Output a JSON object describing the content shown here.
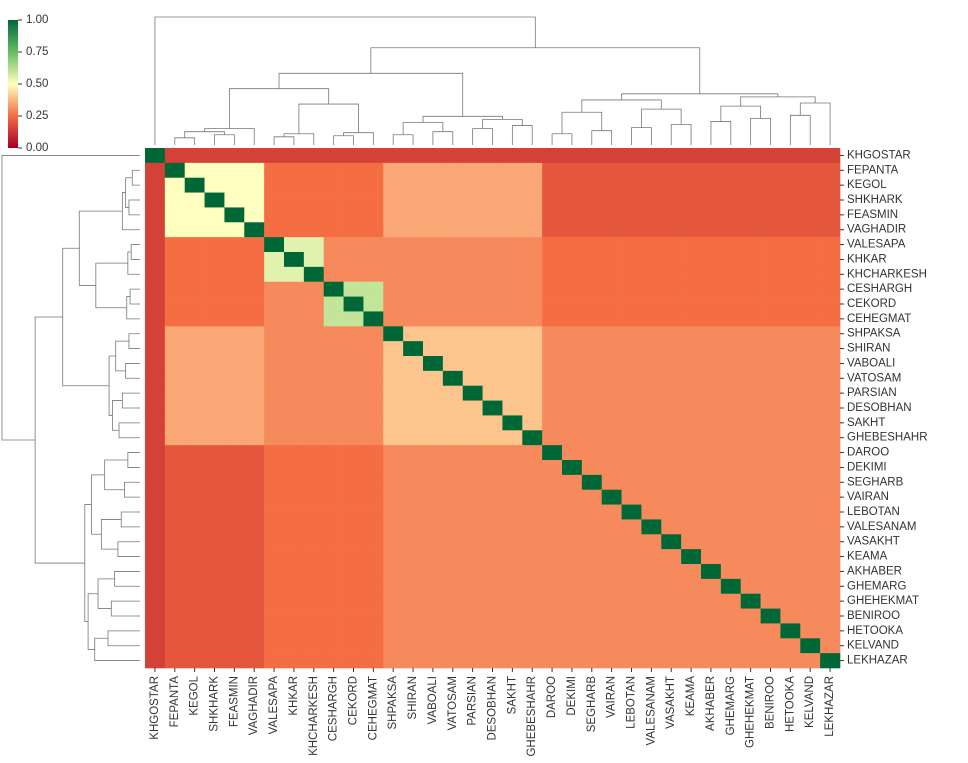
{
  "chart_data": {
    "type": "heatmap",
    "categories": [
      "KHGOSTAR",
      "FEPANTA",
      "KEGOL",
      "SHKHARK",
      "FEASMIN",
      "VAGHADIR",
      "VALESAPA",
      "KHKAR",
      "KHCHARKESH",
      "CESHARGH",
      "CEKORD",
      "CEHEGMAT",
      "SHPAKSA",
      "SHIRAN",
      "VABOALI",
      "VATOSAM",
      "PARSIAN",
      "DESOBHAN",
      "SAKHT",
      "GHEBESHAHR",
      "DAROO",
      "DEKIMI",
      "SEGHARB",
      "VAIRAN",
      "LEBOTAN",
      "VALESANAM",
      "VASAKHT",
      "KEAMA",
      "AKHABER",
      "GHEMARG",
      "GHEHEKMAT",
      "BENIROO",
      "HETOOKA",
      "KELVAND",
      "LEKHAZAR"
    ],
    "values": [
      [
        1,
        0.15,
        0.15,
        0.15,
        0.15,
        0.15,
        0.15,
        0.15,
        0.15,
        0.15,
        0.15,
        0.15,
        0.15,
        0.15,
        0.15,
        0.15,
        0.15,
        0.15,
        0.15,
        0.15,
        0.15,
        0.15,
        0.15,
        0.15,
        0.15,
        0.15,
        0.15,
        0.15,
        0.15,
        0.15,
        0.15,
        0.15,
        0.15,
        0.15,
        0.15
      ],
      [
        0.15,
        1,
        0.5,
        0.5,
        0.5,
        0.5,
        0.25,
        0.25,
        0.25,
        0.25,
        0.25,
        0.25,
        0.35,
        0.35,
        0.35,
        0.35,
        0.35,
        0.35,
        0.35,
        0.35,
        0.2,
        0.2,
        0.2,
        0.2,
        0.2,
        0.2,
        0.2,
        0.2,
        0.2,
        0.2,
        0.2,
        0.2,
        0.2,
        0.2,
        0.2
      ],
      [
        0.15,
        0.5,
        1,
        0.5,
        0.5,
        0.5,
        0.25,
        0.25,
        0.25,
        0.25,
        0.25,
        0.25,
        0.35,
        0.35,
        0.35,
        0.35,
        0.35,
        0.35,
        0.35,
        0.35,
        0.2,
        0.2,
        0.2,
        0.2,
        0.2,
        0.2,
        0.2,
        0.2,
        0.2,
        0.2,
        0.2,
        0.2,
        0.2,
        0.2,
        0.2
      ],
      [
        0.15,
        0.5,
        0.5,
        1,
        0.5,
        0.5,
        0.25,
        0.25,
        0.25,
        0.25,
        0.25,
        0.25,
        0.35,
        0.35,
        0.35,
        0.35,
        0.35,
        0.35,
        0.35,
        0.35,
        0.2,
        0.2,
        0.2,
        0.2,
        0.2,
        0.2,
        0.2,
        0.2,
        0.2,
        0.2,
        0.2,
        0.2,
        0.2,
        0.2,
        0.2
      ],
      [
        0.15,
        0.5,
        0.5,
        0.5,
        1,
        0.5,
        0.25,
        0.25,
        0.25,
        0.25,
        0.25,
        0.25,
        0.35,
        0.35,
        0.35,
        0.35,
        0.35,
        0.35,
        0.35,
        0.35,
        0.2,
        0.2,
        0.2,
        0.2,
        0.2,
        0.2,
        0.2,
        0.2,
        0.2,
        0.2,
        0.2,
        0.2,
        0.2,
        0.2,
        0.2
      ],
      [
        0.15,
        0.5,
        0.5,
        0.5,
        0.5,
        1,
        0.25,
        0.25,
        0.25,
        0.25,
        0.25,
        0.25,
        0.35,
        0.35,
        0.35,
        0.35,
        0.35,
        0.35,
        0.35,
        0.35,
        0.2,
        0.2,
        0.2,
        0.2,
        0.2,
        0.2,
        0.2,
        0.2,
        0.2,
        0.2,
        0.2,
        0.2,
        0.2,
        0.2,
        0.2
      ],
      [
        0.15,
        0.25,
        0.25,
        0.25,
        0.25,
        0.25,
        1,
        0.55,
        0.55,
        0.3,
        0.3,
        0.3,
        0.3,
        0.3,
        0.3,
        0.3,
        0.3,
        0.3,
        0.3,
        0.3,
        0.25,
        0.25,
        0.25,
        0.25,
        0.25,
        0.25,
        0.25,
        0.25,
        0.25,
        0.25,
        0.25,
        0.25,
        0.25,
        0.25,
        0.25
      ],
      [
        0.15,
        0.25,
        0.25,
        0.25,
        0.25,
        0.25,
        0.55,
        1,
        0.55,
        0.3,
        0.3,
        0.3,
        0.3,
        0.3,
        0.3,
        0.3,
        0.3,
        0.3,
        0.3,
        0.3,
        0.25,
        0.25,
        0.25,
        0.25,
        0.25,
        0.25,
        0.25,
        0.25,
        0.25,
        0.25,
        0.25,
        0.25,
        0.25,
        0.25,
        0.25
      ],
      [
        0.15,
        0.25,
        0.25,
        0.25,
        0.25,
        0.25,
        0.55,
        0.55,
        1,
        0.3,
        0.3,
        0.3,
        0.3,
        0.3,
        0.3,
        0.3,
        0.3,
        0.3,
        0.3,
        0.3,
        0.25,
        0.25,
        0.25,
        0.25,
        0.25,
        0.25,
        0.25,
        0.25,
        0.25,
        0.25,
        0.25,
        0.25,
        0.25,
        0.25,
        0.25
      ],
      [
        0.15,
        0.25,
        0.25,
        0.25,
        0.25,
        0.25,
        0.3,
        0.3,
        0.3,
        1,
        0.6,
        0.6,
        0.3,
        0.3,
        0.3,
        0.3,
        0.3,
        0.3,
        0.3,
        0.3,
        0.25,
        0.25,
        0.25,
        0.25,
        0.25,
        0.25,
        0.25,
        0.25,
        0.25,
        0.25,
        0.25,
        0.25,
        0.25,
        0.25,
        0.25
      ],
      [
        0.15,
        0.25,
        0.25,
        0.25,
        0.25,
        0.25,
        0.3,
        0.3,
        0.3,
        0.6,
        1,
        0.6,
        0.3,
        0.3,
        0.3,
        0.3,
        0.3,
        0.3,
        0.3,
        0.3,
        0.25,
        0.25,
        0.25,
        0.25,
        0.25,
        0.25,
        0.25,
        0.25,
        0.25,
        0.25,
        0.25,
        0.25,
        0.25,
        0.25,
        0.25
      ],
      [
        0.15,
        0.25,
        0.25,
        0.25,
        0.25,
        0.25,
        0.3,
        0.3,
        0.3,
        0.6,
        0.6,
        1,
        0.3,
        0.3,
        0.3,
        0.3,
        0.3,
        0.3,
        0.3,
        0.3,
        0.25,
        0.25,
        0.25,
        0.25,
        0.25,
        0.25,
        0.25,
        0.25,
        0.25,
        0.25,
        0.25,
        0.25,
        0.25,
        0.25,
        0.25
      ],
      [
        0.15,
        0.35,
        0.35,
        0.35,
        0.35,
        0.35,
        0.3,
        0.3,
        0.3,
        0.3,
        0.3,
        0.3,
        1,
        0.4,
        0.4,
        0.4,
        0.4,
        0.4,
        0.4,
        0.4,
        0.3,
        0.3,
        0.3,
        0.3,
        0.3,
        0.3,
        0.3,
        0.3,
        0.3,
        0.3,
        0.3,
        0.3,
        0.3,
        0.3,
        0.3
      ],
      [
        0.15,
        0.35,
        0.35,
        0.35,
        0.35,
        0.35,
        0.3,
        0.3,
        0.3,
        0.3,
        0.3,
        0.3,
        0.4,
        1,
        0.4,
        0.4,
        0.4,
        0.4,
        0.4,
        0.4,
        0.3,
        0.3,
        0.3,
        0.3,
        0.3,
        0.3,
        0.3,
        0.3,
        0.3,
        0.3,
        0.3,
        0.3,
        0.3,
        0.3,
        0.3
      ],
      [
        0.15,
        0.35,
        0.35,
        0.35,
        0.35,
        0.35,
        0.3,
        0.3,
        0.3,
        0.3,
        0.3,
        0.3,
        0.4,
        0.4,
        1,
        0.4,
        0.4,
        0.4,
        0.4,
        0.4,
        0.3,
        0.3,
        0.3,
        0.3,
        0.3,
        0.3,
        0.3,
        0.3,
        0.3,
        0.3,
        0.3,
        0.3,
        0.3,
        0.3,
        0.3
      ],
      [
        0.15,
        0.35,
        0.35,
        0.35,
        0.35,
        0.35,
        0.3,
        0.3,
        0.3,
        0.3,
        0.3,
        0.3,
        0.4,
        0.4,
        0.4,
        1,
        0.4,
        0.4,
        0.4,
        0.4,
        0.3,
        0.3,
        0.3,
        0.3,
        0.3,
        0.3,
        0.3,
        0.3,
        0.3,
        0.3,
        0.3,
        0.3,
        0.3,
        0.3,
        0.3
      ],
      [
        0.15,
        0.35,
        0.35,
        0.35,
        0.35,
        0.35,
        0.3,
        0.3,
        0.3,
        0.3,
        0.3,
        0.3,
        0.4,
        0.4,
        0.4,
        0.4,
        1,
        0.4,
        0.4,
        0.4,
        0.3,
        0.3,
        0.3,
        0.3,
        0.3,
        0.3,
        0.3,
        0.3,
        0.3,
        0.3,
        0.3,
        0.3,
        0.3,
        0.3,
        0.3
      ],
      [
        0.15,
        0.35,
        0.35,
        0.35,
        0.35,
        0.35,
        0.3,
        0.3,
        0.3,
        0.3,
        0.3,
        0.3,
        0.4,
        0.4,
        0.4,
        0.4,
        0.4,
        1,
        0.4,
        0.4,
        0.3,
        0.3,
        0.3,
        0.3,
        0.3,
        0.3,
        0.3,
        0.3,
        0.3,
        0.3,
        0.3,
        0.3,
        0.3,
        0.3,
        0.3
      ],
      [
        0.15,
        0.35,
        0.35,
        0.35,
        0.35,
        0.35,
        0.3,
        0.3,
        0.3,
        0.3,
        0.3,
        0.3,
        0.4,
        0.4,
        0.4,
        0.4,
        0.4,
        0.4,
        1,
        0.4,
        0.3,
        0.3,
        0.3,
        0.3,
        0.3,
        0.3,
        0.3,
        0.3,
        0.3,
        0.3,
        0.3,
        0.3,
        0.3,
        0.3,
        0.3
      ],
      [
        0.15,
        0.35,
        0.35,
        0.35,
        0.35,
        0.35,
        0.3,
        0.3,
        0.3,
        0.3,
        0.3,
        0.3,
        0.4,
        0.4,
        0.4,
        0.4,
        0.4,
        0.4,
        0.4,
        1,
        0.3,
        0.3,
        0.3,
        0.3,
        0.3,
        0.3,
        0.3,
        0.3,
        0.3,
        0.3,
        0.3,
        0.3,
        0.3,
        0.3,
        0.3
      ],
      [
        0.15,
        0.2,
        0.2,
        0.2,
        0.2,
        0.2,
        0.25,
        0.25,
        0.25,
        0.25,
        0.25,
        0.25,
        0.3,
        0.3,
        0.3,
        0.3,
        0.3,
        0.3,
        0.3,
        0.3,
        1,
        0.3,
        0.3,
        0.3,
        0.3,
        0.3,
        0.3,
        0.3,
        0.3,
        0.3,
        0.3,
        0.3,
        0.3,
        0.3,
        0.3
      ],
      [
        0.15,
        0.2,
        0.2,
        0.2,
        0.2,
        0.2,
        0.25,
        0.25,
        0.25,
        0.25,
        0.25,
        0.25,
        0.3,
        0.3,
        0.3,
        0.3,
        0.3,
        0.3,
        0.3,
        0.3,
        0.3,
        1,
        0.3,
        0.3,
        0.3,
        0.3,
        0.3,
        0.3,
        0.3,
        0.3,
        0.3,
        0.3,
        0.3,
        0.3,
        0.3
      ],
      [
        0.15,
        0.2,
        0.2,
        0.2,
        0.2,
        0.2,
        0.25,
        0.25,
        0.25,
        0.25,
        0.25,
        0.25,
        0.3,
        0.3,
        0.3,
        0.3,
        0.3,
        0.3,
        0.3,
        0.3,
        0.3,
        0.3,
        1,
        0.3,
        0.3,
        0.3,
        0.3,
        0.3,
        0.3,
        0.3,
        0.3,
        0.3,
        0.3,
        0.3,
        0.3
      ],
      [
        0.15,
        0.2,
        0.2,
        0.2,
        0.2,
        0.2,
        0.25,
        0.25,
        0.25,
        0.25,
        0.25,
        0.25,
        0.3,
        0.3,
        0.3,
        0.3,
        0.3,
        0.3,
        0.3,
        0.3,
        0.3,
        0.3,
        0.3,
        1,
        0.3,
        0.3,
        0.3,
        0.3,
        0.3,
        0.3,
        0.3,
        0.3,
        0.3,
        0.3,
        0.3
      ],
      [
        0.15,
        0.2,
        0.2,
        0.2,
        0.2,
        0.2,
        0.25,
        0.25,
        0.25,
        0.25,
        0.25,
        0.25,
        0.3,
        0.3,
        0.3,
        0.3,
        0.3,
        0.3,
        0.3,
        0.3,
        0.3,
        0.3,
        0.3,
        0.3,
        1,
        0.3,
        0.3,
        0.3,
        0.3,
        0.3,
        0.3,
        0.3,
        0.3,
        0.3,
        0.3
      ],
      [
        0.15,
        0.2,
        0.2,
        0.2,
        0.2,
        0.2,
        0.25,
        0.25,
        0.25,
        0.25,
        0.25,
        0.25,
        0.3,
        0.3,
        0.3,
        0.3,
        0.3,
        0.3,
        0.3,
        0.3,
        0.3,
        0.3,
        0.3,
        0.3,
        0.3,
        1,
        0.3,
        0.3,
        0.3,
        0.3,
        0.3,
        0.3,
        0.3,
        0.3,
        0.3
      ],
      [
        0.15,
        0.2,
        0.2,
        0.2,
        0.2,
        0.2,
        0.25,
        0.25,
        0.25,
        0.25,
        0.25,
        0.25,
        0.3,
        0.3,
        0.3,
        0.3,
        0.3,
        0.3,
        0.3,
        0.3,
        0.3,
        0.3,
        0.3,
        0.3,
        0.3,
        0.3,
        1,
        0.3,
        0.3,
        0.3,
        0.3,
        0.3,
        0.3,
        0.3,
        0.3
      ],
      [
        0.15,
        0.2,
        0.2,
        0.2,
        0.2,
        0.2,
        0.25,
        0.25,
        0.25,
        0.25,
        0.25,
        0.25,
        0.3,
        0.3,
        0.3,
        0.3,
        0.3,
        0.3,
        0.3,
        0.3,
        0.3,
        0.3,
        0.3,
        0.3,
        0.3,
        0.3,
        0.3,
        1,
        0.3,
        0.3,
        0.3,
        0.3,
        0.3,
        0.3,
        0.3
      ],
      [
        0.15,
        0.2,
        0.2,
        0.2,
        0.2,
        0.2,
        0.25,
        0.25,
        0.25,
        0.25,
        0.25,
        0.25,
        0.3,
        0.3,
        0.3,
        0.3,
        0.3,
        0.3,
        0.3,
        0.3,
        0.3,
        0.3,
        0.3,
        0.3,
        0.3,
        0.3,
        0.3,
        0.3,
        1,
        0.3,
        0.3,
        0.3,
        0.3,
        0.3,
        0.3
      ],
      [
        0.15,
        0.2,
        0.2,
        0.2,
        0.2,
        0.2,
        0.25,
        0.25,
        0.25,
        0.25,
        0.25,
        0.25,
        0.3,
        0.3,
        0.3,
        0.3,
        0.3,
        0.3,
        0.3,
        0.3,
        0.3,
        0.3,
        0.3,
        0.3,
        0.3,
        0.3,
        0.3,
        0.3,
        0.3,
        1,
        0.3,
        0.3,
        0.3,
        0.3,
        0.3
      ],
      [
        0.15,
        0.2,
        0.2,
        0.2,
        0.2,
        0.2,
        0.25,
        0.25,
        0.25,
        0.25,
        0.25,
        0.25,
        0.3,
        0.3,
        0.3,
        0.3,
        0.3,
        0.3,
        0.3,
        0.3,
        0.3,
        0.3,
        0.3,
        0.3,
        0.3,
        0.3,
        0.3,
        0.3,
        0.3,
        0.3,
        1,
        0.3,
        0.3,
        0.3,
        0.3
      ],
      [
        0.15,
        0.2,
        0.2,
        0.2,
        0.2,
        0.2,
        0.25,
        0.25,
        0.25,
        0.25,
        0.25,
        0.25,
        0.3,
        0.3,
        0.3,
        0.3,
        0.3,
        0.3,
        0.3,
        0.3,
        0.3,
        0.3,
        0.3,
        0.3,
        0.3,
        0.3,
        0.3,
        0.3,
        0.3,
        0.3,
        0.3,
        1,
        0.3,
        0.3,
        0.3
      ],
      [
        0.15,
        0.2,
        0.2,
        0.2,
        0.2,
        0.2,
        0.25,
        0.25,
        0.25,
        0.25,
        0.25,
        0.25,
        0.3,
        0.3,
        0.3,
        0.3,
        0.3,
        0.3,
        0.3,
        0.3,
        0.3,
        0.3,
        0.3,
        0.3,
        0.3,
        0.3,
        0.3,
        0.3,
        0.3,
        0.3,
        0.3,
        0.3,
        1,
        0.3,
        0.3
      ],
      [
        0.15,
        0.2,
        0.2,
        0.2,
        0.2,
        0.2,
        0.25,
        0.25,
        0.25,
        0.25,
        0.25,
        0.25,
        0.3,
        0.3,
        0.3,
        0.3,
        0.3,
        0.3,
        0.3,
        0.3,
        0.3,
        0.3,
        0.3,
        0.3,
        0.3,
        0.3,
        0.3,
        0.3,
        0.3,
        0.3,
        0.3,
        0.3,
        0.3,
        1,
        0.3
      ],
      [
        0.15,
        0.2,
        0.2,
        0.2,
        0.2,
        0.2,
        0.25,
        0.25,
        0.25,
        0.25,
        0.25,
        0.25,
        0.3,
        0.3,
        0.3,
        0.3,
        0.3,
        0.3,
        0.3,
        0.3,
        0.3,
        0.3,
        0.3,
        0.3,
        0.3,
        0.3,
        0.3,
        0.3,
        0.3,
        0.3,
        0.3,
        0.3,
        0.3,
        0.3,
        1
      ]
    ],
    "zlim": [
      0,
      1
    ],
    "zticks": [
      {
        "value": 0,
        "label": "0.00"
      },
      {
        "value": 0.25,
        "label": "0.25"
      },
      {
        "value": 0.5,
        "label": "0.50"
      },
      {
        "value": 0.75,
        "label": "0.75"
      },
      {
        "value": 1,
        "label": "1.00"
      }
    ],
    "colormap": [
      "#a50026",
      "#f46d43",
      "#ffffbf",
      "#66bd63",
      "#006837"
    ]
  }
}
